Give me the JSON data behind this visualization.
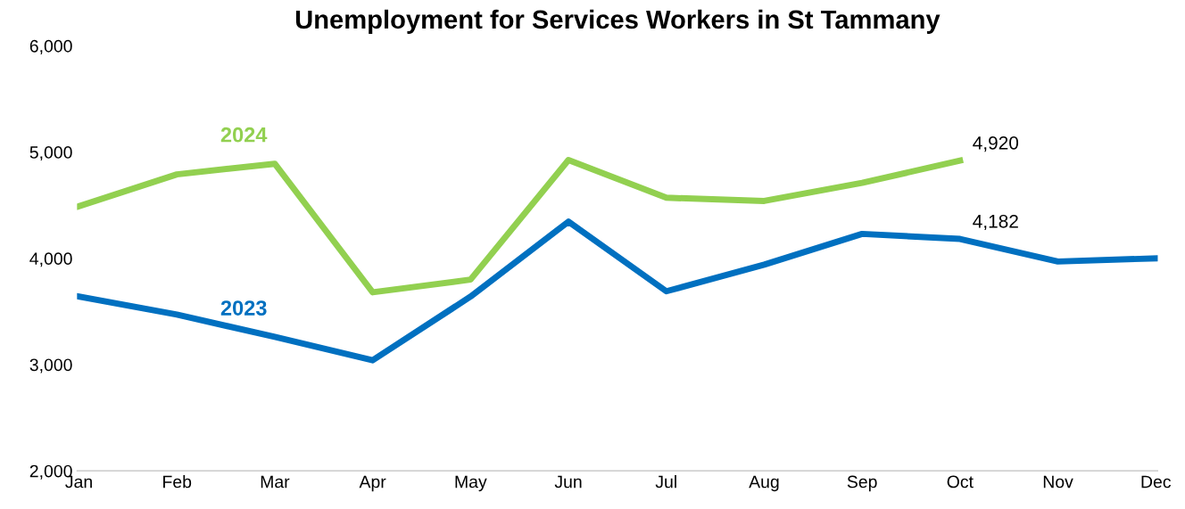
{
  "chart_data": {
    "type": "line",
    "title": "Unemployment for Services Workers in St Tammany",
    "categories": [
      "Jan",
      "Feb",
      "Mar",
      "Apr",
      "May",
      "Jun",
      "Jul",
      "Aug",
      "Sep",
      "Oct",
      "Nov",
      "Dec"
    ],
    "series": [
      {
        "name": "2024",
        "color": "#92d050",
        "values": [
          4490,
          4790,
          4890,
          3680,
          3800,
          4925,
          4570,
          4540,
          4710,
          4920,
          null,
          null
        ],
        "value_labels": [
          null,
          null,
          null,
          null,
          null,
          null,
          null,
          null,
          null,
          "4,920",
          null,
          null
        ]
      },
      {
        "name": "2023",
        "color": "#0070c0",
        "values": [
          3640,
          3470,
          3260,
          3040,
          3640,
          4345,
          3690,
          3940,
          4230,
          4182,
          3970,
          4000
        ],
        "value_labels": [
          null,
          null,
          null,
          null,
          null,
          null,
          null,
          null,
          null,
          "4,182",
          null,
          null
        ]
      }
    ],
    "ylim": [
      2000,
      6000
    ],
    "yticks": [
      {
        "value": 2000,
        "label": "2,000"
      },
      {
        "value": 3000,
        "label": "3,000"
      },
      {
        "value": 4000,
        "label": "4,000"
      },
      {
        "value": 5000,
        "label": "5,000"
      },
      {
        "value": 6000,
        "label": "6,000"
      }
    ],
    "grid": false,
    "legend": false,
    "marker": "none",
    "line_style": "solid"
  }
}
